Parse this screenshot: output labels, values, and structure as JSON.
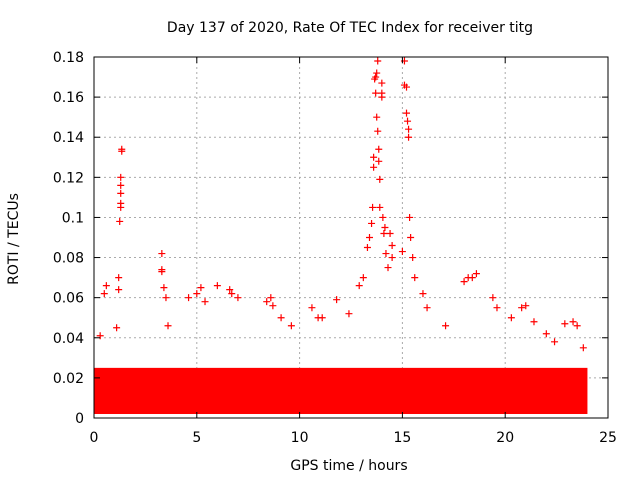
{
  "chart_data": {
    "type": "scatter",
    "title": "Day 137 of 2020, Rate Of TEC Index for receiver titg",
    "xlabel": "GPS time / hours",
    "ylabel": "ROTI / TECUs",
    "xlim": [
      0,
      25
    ],
    "ylim": [
      0,
      0.18
    ],
    "x_ticks": [
      0,
      5,
      10,
      15,
      20,
      25
    ],
    "y_ticks": [
      0,
      0.02,
      0.04,
      0.06,
      0.08,
      0.1,
      0.12,
      0.14,
      0.16,
      0.18
    ],
    "x_tick_labels": [
      "0",
      "5",
      "10",
      "15",
      "20",
      "25"
    ],
    "y_tick_labels": [
      "0",
      "0.02",
      "0.04",
      "0.06",
      "0.08",
      "0.1",
      "0.12",
      "0.14",
      "0.16",
      "0.18"
    ],
    "grid": true,
    "marker": "+",
    "marker_color": "#ff0000",
    "band": {
      "x_start": 0,
      "x_end": 24,
      "y_min": 0.002,
      "y_max": 0.025
    },
    "series": [
      {
        "name": "ROTI",
        "points": [
          [
            0.3,
            0.041
          ],
          [
            0.5,
            0.062
          ],
          [
            0.6,
            0.066
          ],
          [
            1.1,
            0.045
          ],
          [
            1.2,
            0.07
          ],
          [
            1.2,
            0.064
          ],
          [
            1.25,
            0.098
          ],
          [
            1.3,
            0.105
          ],
          [
            1.3,
            0.107
          ],
          [
            1.3,
            0.112
          ],
          [
            1.3,
            0.116
          ],
          [
            1.3,
            0.12
          ],
          [
            1.35,
            0.133
          ],
          [
            1.35,
            0.134
          ],
          [
            3.3,
            0.082
          ],
          [
            3.3,
            0.074
          ],
          [
            3.3,
            0.073
          ],
          [
            3.4,
            0.065
          ],
          [
            3.5,
            0.06
          ],
          [
            3.6,
            0.046
          ],
          [
            4.6,
            0.06
          ],
          [
            5.0,
            0.062
          ],
          [
            5.2,
            0.065
          ],
          [
            5.4,
            0.058
          ],
          [
            6.0,
            0.066
          ],
          [
            6.6,
            0.064
          ],
          [
            6.7,
            0.062
          ],
          [
            7.0,
            0.06
          ],
          [
            8.4,
            0.058
          ],
          [
            8.6,
            0.06
          ],
          [
            8.7,
            0.056
          ],
          [
            9.1,
            0.05
          ],
          [
            9.6,
            0.046
          ],
          [
            10.6,
            0.055
          ],
          [
            10.9,
            0.05
          ],
          [
            11.1,
            0.05
          ],
          [
            11.8,
            0.059
          ],
          [
            12.4,
            0.052
          ],
          [
            12.9,
            0.066
          ],
          [
            13.1,
            0.07
          ],
          [
            13.3,
            0.085
          ],
          [
            13.4,
            0.09
          ],
          [
            13.5,
            0.097
          ],
          [
            13.55,
            0.105
          ],
          [
            13.6,
            0.125
          ],
          [
            13.6,
            0.13
          ],
          [
            13.65,
            0.169
          ],
          [
            13.7,
            0.17
          ],
          [
            13.7,
            0.162
          ],
          [
            13.75,
            0.172
          ],
          [
            13.75,
            0.15
          ],
          [
            13.8,
            0.178
          ],
          [
            13.8,
            0.143
          ],
          [
            13.85,
            0.134
          ],
          [
            13.85,
            0.128
          ],
          [
            13.9,
            0.119
          ],
          [
            13.9,
            0.105
          ],
          [
            14.0,
            0.162
          ],
          [
            14.0,
            0.16
          ],
          [
            14.0,
            0.167
          ],
          [
            14.05,
            0.1
          ],
          [
            14.1,
            0.092
          ],
          [
            14.15,
            0.095
          ],
          [
            14.2,
            0.082
          ],
          [
            14.3,
            0.075
          ],
          [
            14.4,
            0.092
          ],
          [
            14.5,
            0.08
          ],
          [
            14.5,
            0.086
          ],
          [
            15.0,
            0.083
          ],
          [
            15.1,
            0.178
          ],
          [
            15.1,
            0.166
          ],
          [
            15.2,
            0.165
          ],
          [
            15.2,
            0.152
          ],
          [
            15.25,
            0.148
          ],
          [
            15.3,
            0.144
          ],
          [
            15.3,
            0.14
          ],
          [
            15.35,
            0.1
          ],
          [
            15.4,
            0.09
          ],
          [
            15.5,
            0.08
          ],
          [
            15.6,
            0.07
          ],
          [
            16.0,
            0.062
          ],
          [
            16.2,
            0.055
          ],
          [
            17.1,
            0.046
          ],
          [
            18.0,
            0.068
          ],
          [
            18.2,
            0.07
          ],
          [
            18.4,
            0.07
          ],
          [
            18.6,
            0.072
          ],
          [
            19.4,
            0.06
          ],
          [
            19.6,
            0.055
          ],
          [
            20.3,
            0.05
          ],
          [
            20.8,
            0.055
          ],
          [
            21.0,
            0.056
          ],
          [
            21.4,
            0.048
          ],
          [
            22.0,
            0.042
          ],
          [
            22.4,
            0.038
          ],
          [
            22.9,
            0.047
          ],
          [
            23.3,
            0.048
          ],
          [
            23.5,
            0.046
          ],
          [
            23.8,
            0.035
          ]
        ]
      }
    ]
  }
}
